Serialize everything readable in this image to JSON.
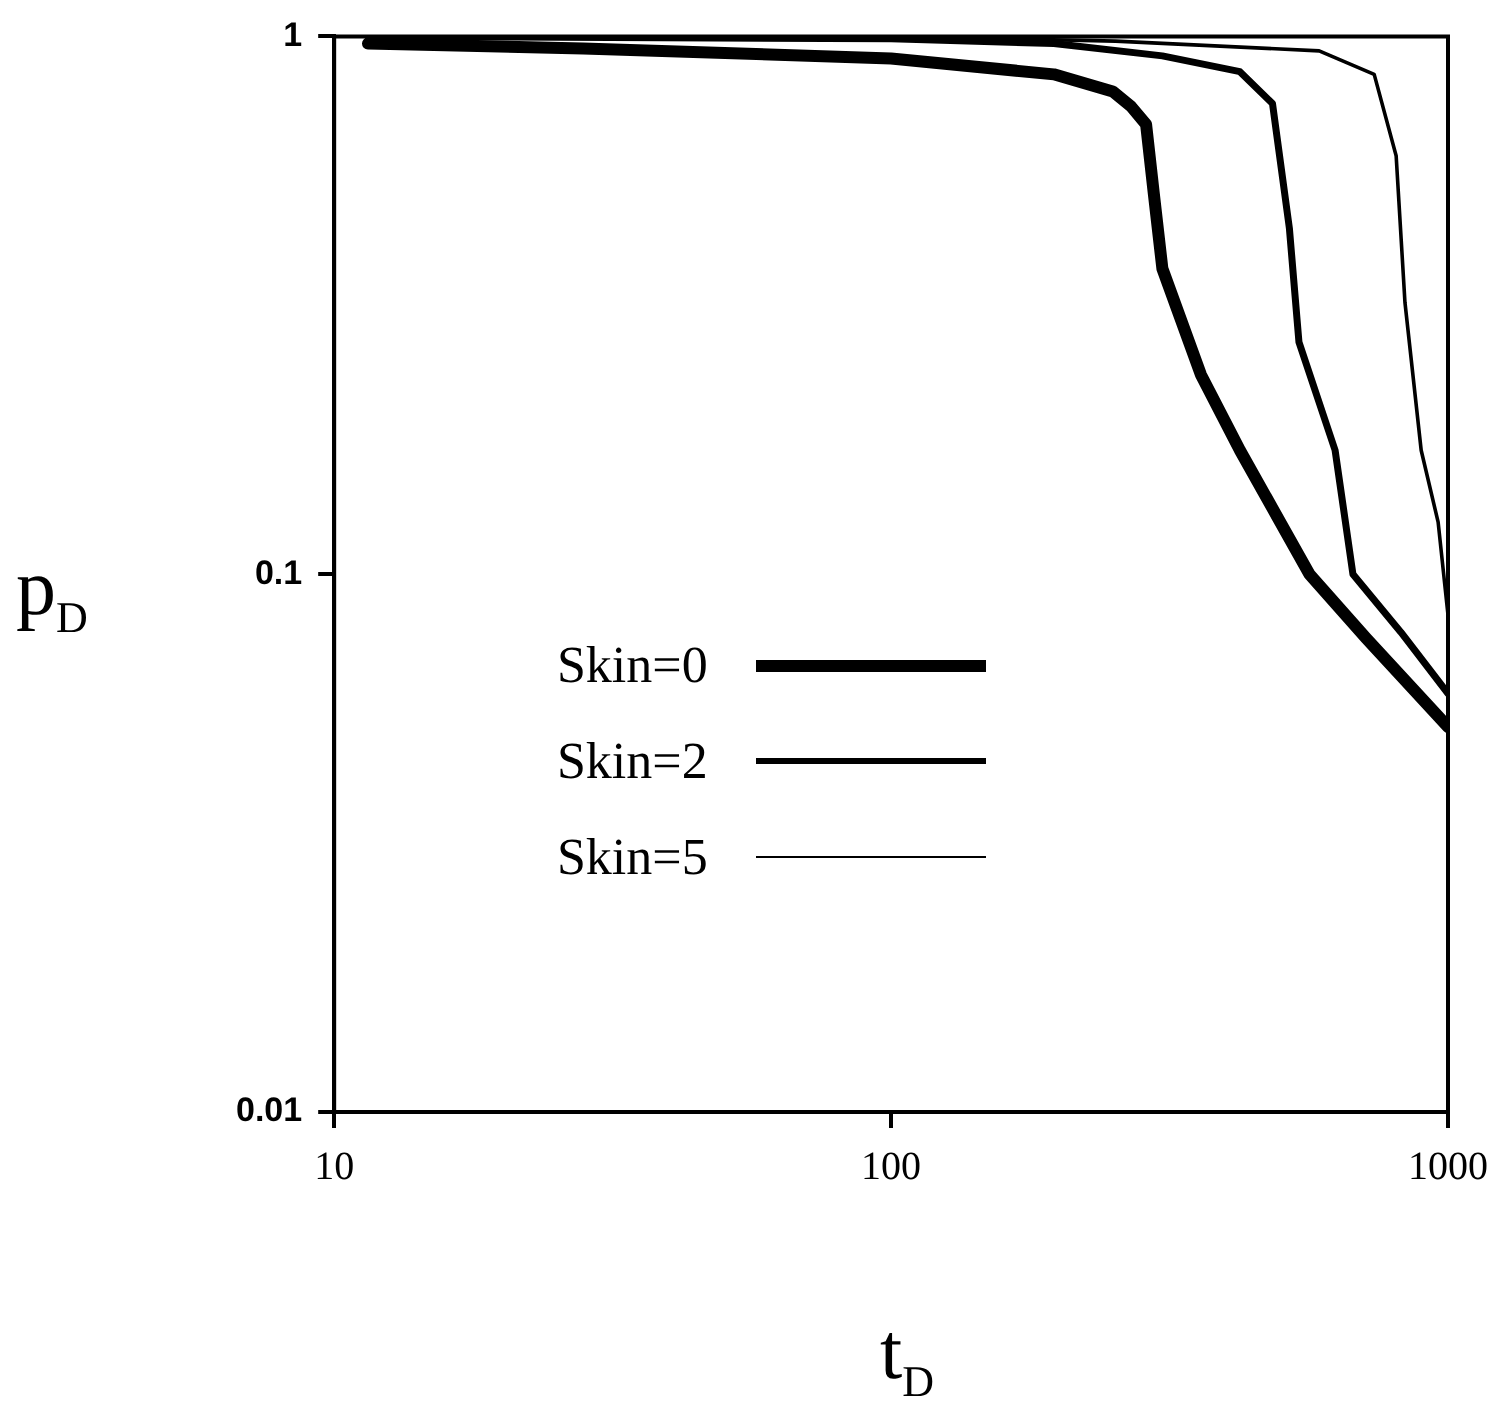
{
  "chart_data": {
    "type": "line",
    "xlabel": "t$_{D}$",
    "ylabel": "p$_{D}$",
    "log": "xy",
    "grid": false,
    "legend": "left",
    "marker": "none",
    "line_style": "solid",
    "xlim": [
      10,
      1000
    ],
    "xticks": [
      10,
      100,
      1000
    ],
    "ylim": [
      0.01,
      1
    ],
    "yticks": [
      0.01,
      0.1,
      1
    ],
    "series": [
      {
        "name": "Skin=0",
        "color": "#000000",
        "x": [
          11.5,
          28,
          100,
          196,
          250,
          270,
          287,
          296,
          307,
          360,
          423,
          564,
          713,
          1000
        ],
        "values": [
          0.97,
          0.95,
          0.91,
          0.85,
          0.79,
          0.74,
          0.686,
          0.515,
          0.37,
          0.235,
          0.17,
          0.1,
          0.076,
          0.052
        ]
      },
      {
        "name": "Skin=2",
        "color": "#000000",
        "x": [
          11.5,
          100,
          196,
          307,
          423,
          484,
          519,
          540,
          627,
          675,
          823,
          1000
        ],
        "values": [
          1.0,
          0.99,
          0.97,
          0.92,
          0.86,
          0.75,
          0.44,
          0.27,
          0.17,
          0.1,
          0.078,
          0.06
        ]
      },
      {
        "name": "Skin=5",
        "color": "#000000",
        "x": [
          11.5,
          100,
          253,
          587,
          737,
          807,
          837,
          895,
          960,
          1000
        ],
        "values": [
          1.0,
          1.0,
          0.98,
          0.94,
          0.85,
          0.6,
          0.32,
          0.17,
          0.125,
          0.084
        ]
      }
    ]
  }
}
